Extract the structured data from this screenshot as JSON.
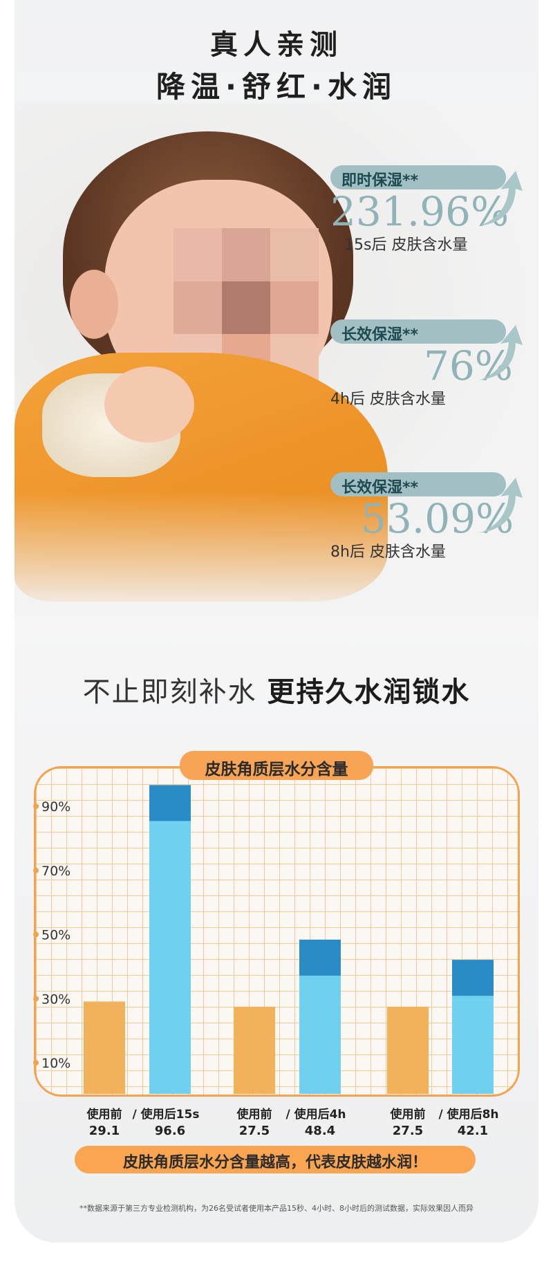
{
  "title": {
    "line1": "真人亲测",
    "line2": "降温·舒红·水润"
  },
  "stats": [
    {
      "label": "即时保湿**",
      "value": "231.96%",
      "sub": "15s后 皮肤含水量"
    },
    {
      "label": "长效保湿**",
      "value": "76%",
      "sub": "4h后 皮肤含水量"
    },
    {
      "label": "长效保湿**",
      "value": "53.09%",
      "sub": "8h后 皮肤含水量"
    }
  ],
  "headline": {
    "light": "不止即刻补水 ",
    "bold": "更持久水润锁水"
  },
  "chart_data": {
    "type": "bar",
    "title": "皮肤角质层水分含量",
    "y_ticks": [
      "90%",
      "70%",
      "50%",
      "30%",
      "10%"
    ],
    "ylim": [
      0,
      100
    ],
    "grid": true,
    "groups": [
      {
        "before_label": "使用前",
        "after_label": "/ 使用后15s",
        "before": 29.1,
        "after": 96.6
      },
      {
        "before_label": "使用前",
        "after_label": "/ 使用后4h",
        "before": 27.5,
        "after": 48.4
      },
      {
        "before_label": "使用前",
        "after_label": "/ 使用后8h",
        "before": 27.5,
        "after": 42.1
      }
    ],
    "colors": {
      "before": "#f2b25c",
      "after": "#6fd0ef",
      "after_top": "#2b8bc7"
    }
  },
  "note": "皮肤角质层水分含量越高，代表皮肤越水润！",
  "footnote": "**数据来源于第三方专业检测机构，为26名受试者使用本产品15秒、4小时、8小时后的测试数据，实际效果因人而异"
}
